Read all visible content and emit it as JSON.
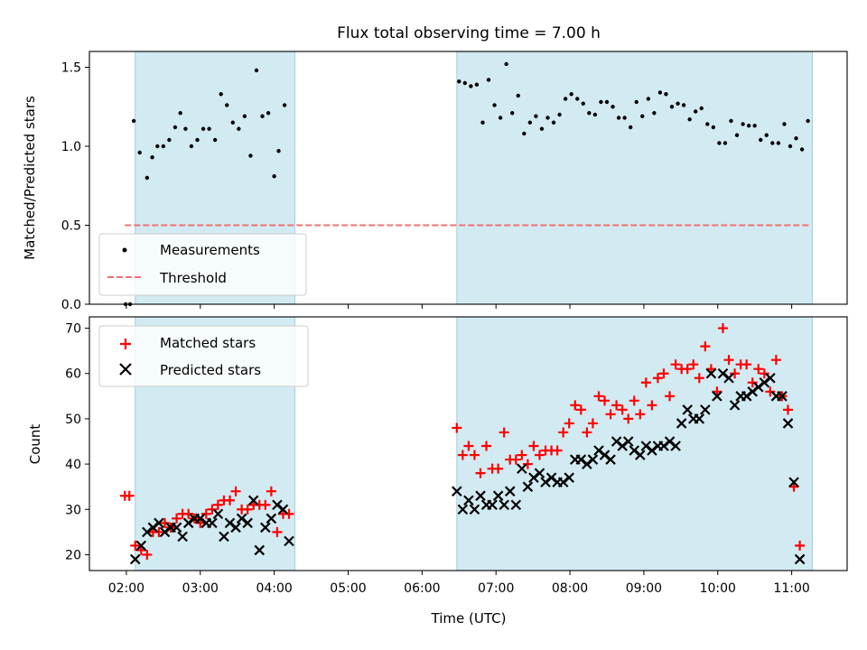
{
  "chart_data": {
    "title": "Flux total observing time = 7.00 h",
    "type": "scatter",
    "x_unit": "hours (UTC)",
    "xlabel": "Time (UTC)",
    "xlim": [
      1.5,
      11.75
    ],
    "x_ticks": [
      {
        "v": 2,
        "label": "02:00"
      },
      {
        "v": 3,
        "label": "03:00"
      },
      {
        "v": 4,
        "label": "04:00"
      },
      {
        "v": 5,
        "label": "05:00"
      },
      {
        "v": 6,
        "label": "06:00"
      },
      {
        "v": 7,
        "label": "07:00"
      },
      {
        "v": 8,
        "label": "08:00"
      },
      {
        "v": 9,
        "label": "09:00"
      },
      {
        "v": 10,
        "label": "10:00"
      },
      {
        "v": 11,
        "label": "11:00"
      }
    ],
    "shaded_intervals": [
      [
        2.12,
        4.28
      ],
      [
        6.47,
        11.28
      ]
    ],
    "shade_color": "#add8e6",
    "top_panel": {
      "ylabel": "Matched/Predicted stars",
      "ylim": [
        0,
        1.6
      ],
      "y_ticks": [
        {
          "v": 0,
          "label": "0.0"
        },
        {
          "v": 0.5,
          "label": "0.5"
        },
        {
          "v": 1.0,
          "label": "1.0"
        },
        {
          "v": 1.5,
          "label": "1.5"
        }
      ],
      "legend": {
        "placement": "lower-left",
        "entries": [
          "Measurements",
          "Threshold"
        ]
      },
      "threshold": {
        "y": 0.5,
        "x": [
          1.98,
          11.25
        ],
        "color": "#f07070"
      },
      "measurements": [
        [
          1.99,
          0.0
        ],
        [
          2.05,
          0.0
        ],
        [
          2.1,
          1.16
        ],
        [
          2.18,
          0.96
        ],
        [
          2.28,
          0.8
        ],
        [
          2.35,
          0.93
        ],
        [
          2.42,
          1.0
        ],
        [
          2.5,
          1.0
        ],
        [
          2.58,
          1.04
        ],
        [
          2.66,
          1.12
        ],
        [
          2.73,
          1.21
        ],
        [
          2.8,
          1.11
        ],
        [
          2.88,
          1.0
        ],
        [
          2.96,
          1.04
        ],
        [
          3.04,
          1.11
        ],
        [
          3.12,
          1.11
        ],
        [
          3.2,
          1.04
        ],
        [
          3.28,
          1.33
        ],
        [
          3.36,
          1.26
        ],
        [
          3.44,
          1.15
        ],
        [
          3.52,
          1.11
        ],
        [
          3.6,
          1.19
        ],
        [
          3.68,
          0.94
        ],
        [
          3.76,
          1.48
        ],
        [
          3.84,
          1.19
        ],
        [
          3.92,
          1.21
        ],
        [
          4.0,
          0.81
        ],
        [
          4.06,
          0.97
        ],
        [
          4.14,
          1.26
        ],
        [
          6.5,
          1.41
        ],
        [
          6.58,
          1.4
        ],
        [
          6.66,
          1.38
        ],
        [
          6.74,
          1.39
        ],
        [
          6.82,
          1.15
        ],
        [
          6.9,
          1.42
        ],
        [
          6.98,
          1.26
        ],
        [
          7.06,
          1.18
        ],
        [
          7.14,
          1.52
        ],
        [
          7.22,
          1.21
        ],
        [
          7.3,
          1.32
        ],
        [
          7.38,
          1.08
        ],
        [
          7.46,
          1.15
        ],
        [
          7.54,
          1.19
        ],
        [
          7.62,
          1.11
        ],
        [
          7.7,
          1.18
        ],
        [
          7.78,
          1.15
        ],
        [
          7.86,
          1.2
        ],
        [
          7.94,
          1.3
        ],
        [
          8.02,
          1.33
        ],
        [
          8.1,
          1.3
        ],
        [
          8.18,
          1.27
        ],
        [
          8.26,
          1.21
        ],
        [
          8.34,
          1.2
        ],
        [
          8.42,
          1.28
        ],
        [
          8.5,
          1.28
        ],
        [
          8.58,
          1.25
        ],
        [
          8.66,
          1.18
        ],
        [
          8.74,
          1.18
        ],
        [
          8.82,
          1.12
        ],
        [
          8.9,
          1.28
        ],
        [
          8.98,
          1.19
        ],
        [
          9.06,
          1.3
        ],
        [
          9.14,
          1.21
        ],
        [
          9.22,
          1.34
        ],
        [
          9.3,
          1.33
        ],
        [
          9.38,
          1.25
        ],
        [
          9.46,
          1.27
        ],
        [
          9.54,
          1.26
        ],
        [
          9.62,
          1.17
        ],
        [
          9.7,
          1.22
        ],
        [
          9.78,
          1.24
        ],
        [
          9.86,
          1.14
        ],
        [
          9.94,
          1.12
        ],
        [
          10.02,
          1.02
        ],
        [
          10.1,
          1.02
        ],
        [
          10.18,
          1.16
        ],
        [
          10.26,
          1.07
        ],
        [
          10.34,
          1.14
        ],
        [
          10.42,
          1.13
        ],
        [
          10.5,
          1.13
        ],
        [
          10.58,
          1.04
        ],
        [
          10.66,
          1.07
        ],
        [
          10.74,
          1.02
        ],
        [
          10.82,
          1.02
        ],
        [
          10.9,
          1.14
        ],
        [
          10.98,
          1.0
        ],
        [
          11.06,
          1.05
        ],
        [
          11.14,
          0.98
        ],
        [
          11.22,
          1.16
        ]
      ]
    },
    "bottom_panel": {
      "ylabel": "Count",
      "ylim": [
        16.5,
        72.5
      ],
      "y_ticks": [
        {
          "v": 20,
          "label": "20"
        },
        {
          "v": 30,
          "label": "30"
        },
        {
          "v": 40,
          "label": "40"
        },
        {
          "v": 50,
          "label": "50"
        },
        {
          "v": 60,
          "label": "60"
        },
        {
          "v": 70,
          "label": "70"
        }
      ],
      "legend": {
        "placement": "upper-left",
        "entries": [
          "Matched stars",
          "Predicted stars"
        ]
      },
      "series": [
        {
          "name": "Matched stars",
          "marker": "plus",
          "color": "#ff0000",
          "points": [
            [
              1.98,
              33
            ],
            [
              2.04,
              33
            ],
            [
              2.12,
              22
            ],
            [
              2.2,
              21
            ],
            [
              2.28,
              20
            ],
            [
              2.36,
              25
            ],
            [
              2.44,
              25
            ],
            [
              2.52,
              27
            ],
            [
              2.6,
              26
            ],
            [
              2.68,
              28
            ],
            [
              2.76,
              29
            ],
            [
              2.84,
              29
            ],
            [
              2.92,
              28
            ],
            [
              3.0,
              27
            ],
            [
              3.08,
              29
            ],
            [
              3.16,
              30
            ],
            [
              3.24,
              31
            ],
            [
              3.32,
              32
            ],
            [
              3.4,
              32
            ],
            [
              3.48,
              34
            ],
            [
              3.56,
              30
            ],
            [
              3.64,
              30
            ],
            [
              3.72,
              31
            ],
            [
              3.8,
              31
            ],
            [
              3.88,
              31
            ],
            [
              3.96,
              34
            ],
            [
              4.04,
              25
            ],
            [
              4.12,
              29
            ],
            [
              4.2,
              29
            ],
            [
              6.47,
              48
            ],
            [
              6.55,
              42
            ],
            [
              6.63,
              44
            ],
            [
              6.71,
              42
            ],
            [
              6.79,
              38
            ],
            [
              6.87,
              44
            ],
            [
              6.95,
              39
            ],
            [
              7.03,
              39
            ],
            [
              7.11,
              47
            ],
            [
              7.19,
              41
            ],
            [
              7.27,
              41
            ],
            [
              7.35,
              42
            ],
            [
              7.43,
              40
            ],
            [
              7.51,
              44
            ],
            [
              7.59,
              42
            ],
            [
              7.67,
              43
            ],
            [
              7.75,
              43
            ],
            [
              7.83,
              43
            ],
            [
              7.91,
              47
            ],
            [
              7.99,
              49
            ],
            [
              8.07,
              53
            ],
            [
              8.15,
              52
            ],
            [
              8.23,
              47
            ],
            [
              8.31,
              49
            ],
            [
              8.39,
              55
            ],
            [
              8.47,
              54
            ],
            [
              8.55,
              51
            ],
            [
              8.63,
              53
            ],
            [
              8.71,
              52
            ],
            [
              8.79,
              50
            ],
            [
              8.87,
              54
            ],
            [
              8.95,
              51
            ],
            [
              9.03,
              58
            ],
            [
              9.11,
              53
            ],
            [
              9.19,
              59
            ],
            [
              9.27,
              60
            ],
            [
              9.35,
              55
            ],
            [
              9.43,
              62
            ],
            [
              9.51,
              61
            ],
            [
              9.59,
              61
            ],
            [
              9.67,
              62
            ],
            [
              9.75,
              59
            ],
            [
              9.83,
              66
            ],
            [
              9.91,
              61
            ],
            [
              9.99,
              56
            ],
            [
              10.07,
              70
            ],
            [
              10.15,
              63
            ],
            [
              10.23,
              60
            ],
            [
              10.31,
              62
            ],
            [
              10.39,
              62
            ],
            [
              10.47,
              58
            ],
            [
              10.55,
              61
            ],
            [
              10.63,
              60
            ],
            [
              10.71,
              56
            ],
            [
              10.79,
              63
            ],
            [
              10.87,
              55
            ],
            [
              10.95,
              52
            ],
            [
              11.03,
              35
            ],
            [
              11.11,
              22
            ]
          ]
        },
        {
          "name": "Predicted stars",
          "marker": "x",
          "color": "#000000",
          "points": [
            [
              2.12,
              19
            ],
            [
              2.2,
              22
            ],
            [
              2.28,
              25
            ],
            [
              2.36,
              26
            ],
            [
              2.44,
              27
            ],
            [
              2.52,
              25
            ],
            [
              2.6,
              26
            ],
            [
              2.68,
              26
            ],
            [
              2.76,
              24
            ],
            [
              2.84,
              27
            ],
            [
              2.92,
              28
            ],
            [
              3.0,
              28
            ],
            [
              3.08,
              27
            ],
            [
              3.16,
              27
            ],
            [
              3.24,
              29
            ],
            [
              3.32,
              24
            ],
            [
              3.4,
              27
            ],
            [
              3.48,
              26
            ],
            [
              3.56,
              28
            ],
            [
              3.64,
              27
            ],
            [
              3.72,
              32
            ],
            [
              3.8,
              21
            ],
            [
              3.88,
              26
            ],
            [
              3.96,
              28
            ],
            [
              4.04,
              31
            ],
            [
              4.12,
              30
            ],
            [
              4.2,
              23
            ],
            [
              6.47,
              34
            ],
            [
              6.55,
              30
            ],
            [
              6.63,
              32
            ],
            [
              6.71,
              30
            ],
            [
              6.79,
              33
            ],
            [
              6.87,
              31
            ],
            [
              6.95,
              31
            ],
            [
              7.03,
              33
            ],
            [
              7.11,
              31
            ],
            [
              7.19,
              34
            ],
            [
              7.27,
              31
            ],
            [
              7.35,
              39
            ],
            [
              7.43,
              35
            ],
            [
              7.51,
              37
            ],
            [
              7.59,
              38
            ],
            [
              7.67,
              36
            ],
            [
              7.75,
              37
            ],
            [
              7.83,
              36
            ],
            [
              7.91,
              36
            ],
            [
              7.99,
              37
            ],
            [
              8.07,
              41
            ],
            [
              8.15,
              41
            ],
            [
              8.23,
              40
            ],
            [
              8.31,
              41
            ],
            [
              8.39,
              43
            ],
            [
              8.47,
              42
            ],
            [
              8.55,
              41
            ],
            [
              8.63,
              45
            ],
            [
              8.71,
              44
            ],
            [
              8.79,
              45
            ],
            [
              8.87,
              43
            ],
            [
              8.95,
              42
            ],
            [
              9.03,
              44
            ],
            [
              9.11,
              43
            ],
            [
              9.19,
              44
            ],
            [
              9.27,
              44
            ],
            [
              9.35,
              45
            ],
            [
              9.43,
              44
            ],
            [
              9.51,
              49
            ],
            [
              9.59,
              52
            ],
            [
              9.67,
              50
            ],
            [
              9.75,
              50
            ],
            [
              9.83,
              52
            ],
            [
              9.91,
              60
            ],
            [
              9.99,
              55
            ],
            [
              10.07,
              60
            ],
            [
              10.15,
              59
            ],
            [
              10.23,
              53
            ],
            [
              10.31,
              55
            ],
            [
              10.39,
              55
            ],
            [
              10.47,
              56
            ],
            [
              10.55,
              57
            ],
            [
              10.63,
              58
            ],
            [
              10.71,
              59
            ],
            [
              10.79,
              55
            ],
            [
              10.87,
              55
            ],
            [
              10.95,
              49
            ],
            [
              11.03,
              36
            ],
            [
              11.11,
              19
            ]
          ]
        }
      ]
    }
  }
}
